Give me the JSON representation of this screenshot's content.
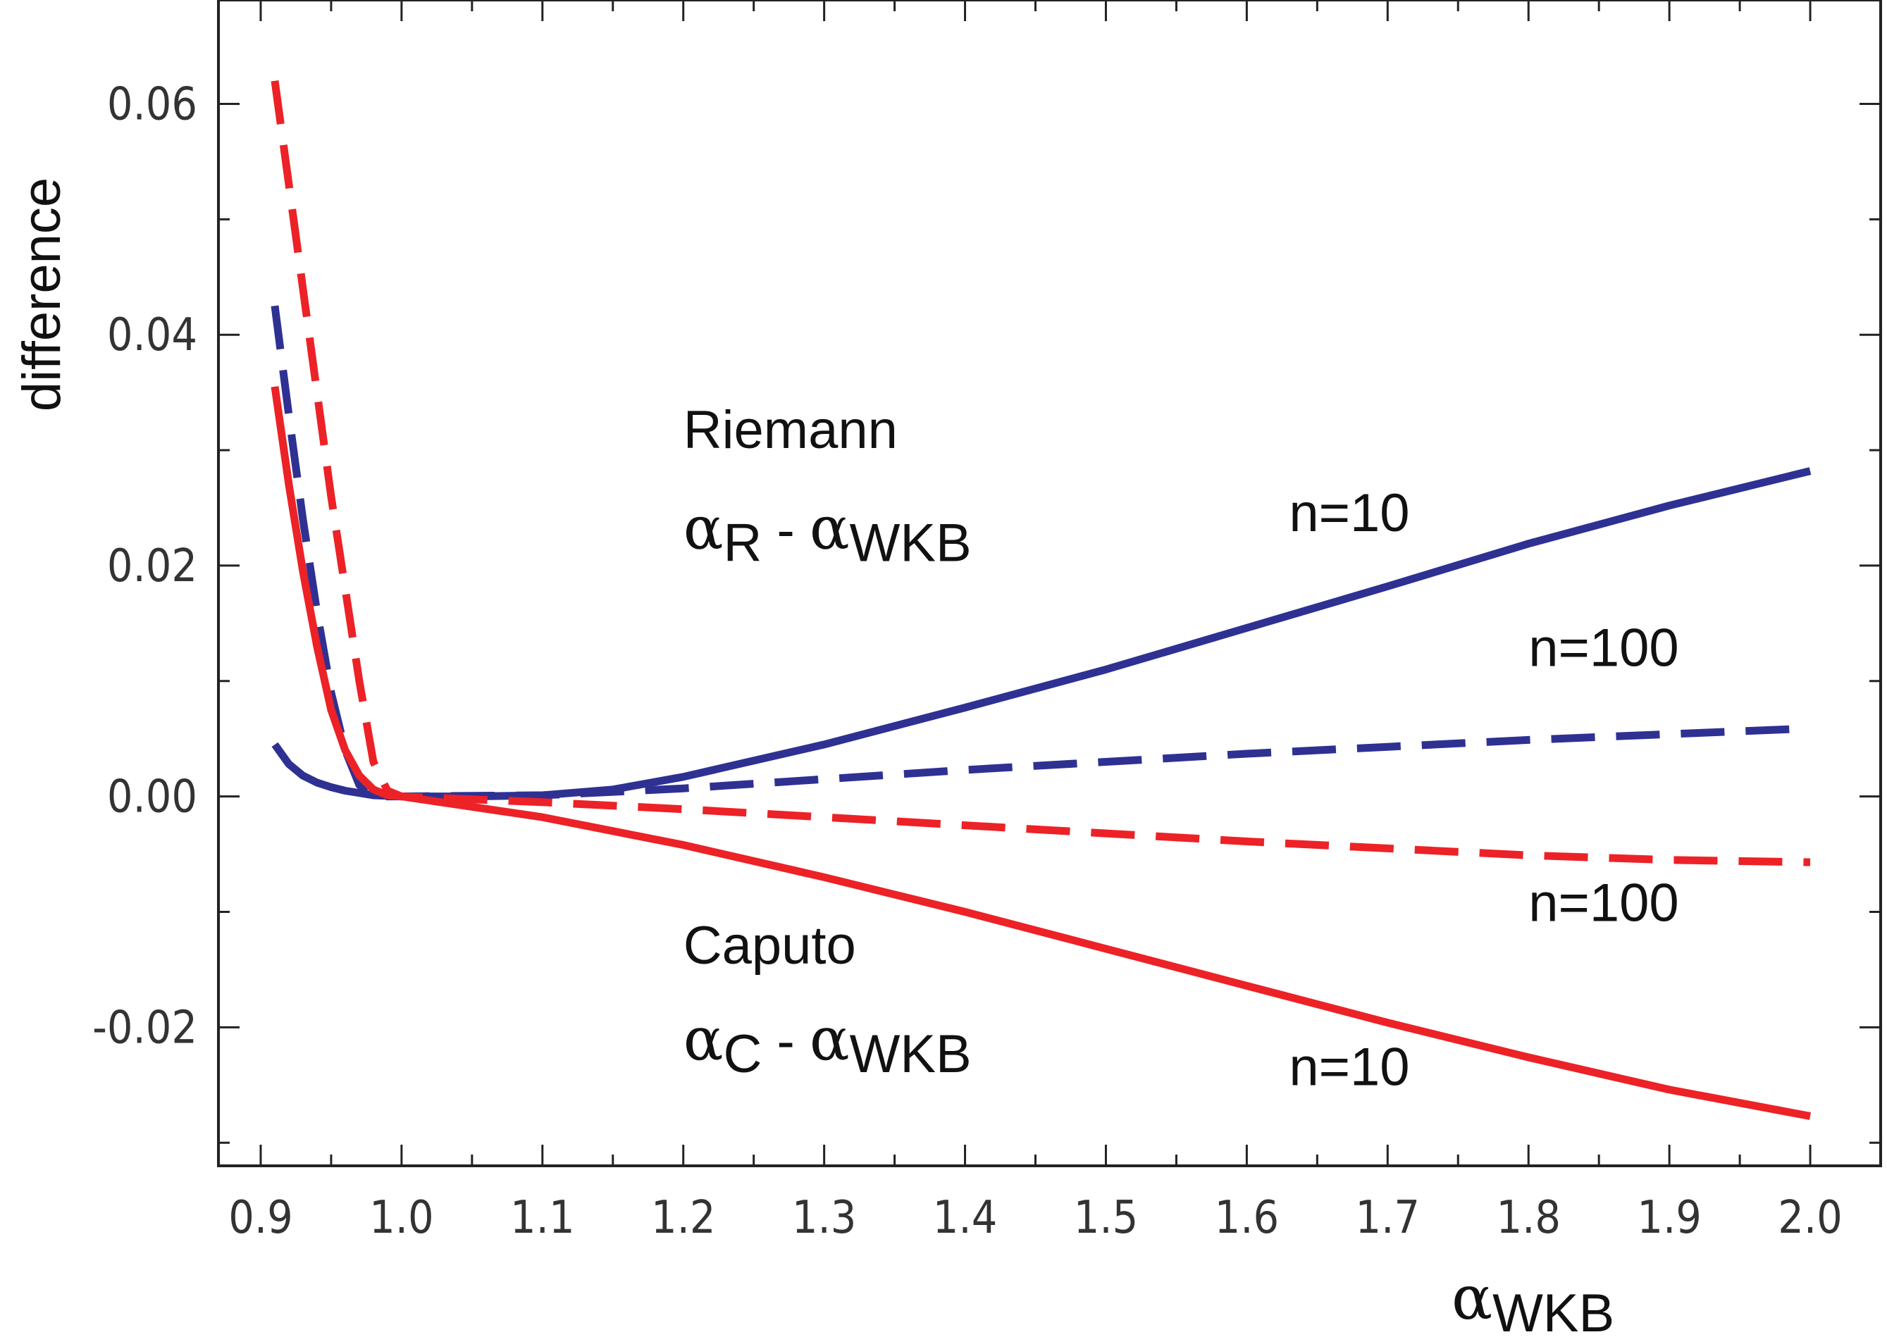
{
  "chart_data": {
    "type": "line",
    "xlabel": "α",
    "xlabel_sub": "WKB",
    "ylabel": "difference",
    "xlim": [
      0.87,
      2.05
    ],
    "ylim": [
      -0.032,
      0.069
    ],
    "x_ticks": [
      0.9,
      1.0,
      1.1,
      1.2,
      1.3,
      1.4,
      1.5,
      1.6,
      1.7,
      1.8,
      1.9,
      2.0
    ],
    "x_tick_labels": [
      "0.9",
      "1.0",
      "1.1",
      "1.2",
      "1.3",
      "1.4",
      "1.5",
      "1.6",
      "1.7",
      "1.8",
      "1.9",
      "2.0"
    ],
    "y_ticks": [
      -0.02,
      0.0,
      0.02,
      0.04,
      0.06
    ],
    "y_tick_labels": [
      "-0.02",
      "0.00",
      "0.02",
      "0.04",
      "0.06"
    ],
    "grid": false,
    "legend": "none",
    "series": [
      {
        "style": "solid",
        "color": "#2e3192",
        "x": [
          0.91,
          0.92,
          0.93,
          0.94,
          0.95,
          0.96,
          0.97,
          0.98,
          0.99,
          1.0,
          1.05,
          1.1,
          1.15,
          1.2,
          1.3,
          1.4,
          1.5,
          1.6,
          1.7,
          1.8,
          1.9,
          2.0
        ],
        "y": [
          0.0045,
          0.0028,
          0.0018,
          0.0012,
          0.0008,
          0.0005,
          0.0003,
          0.0001,
          5e-05,
          0.0,
          0.0,
          0.0001,
          0.0006,
          0.0017,
          0.0045,
          0.0077,
          0.011,
          0.0146,
          0.0182,
          0.0219,
          0.0252,
          0.0282
        ]
      },
      {
        "style": "dashed",
        "color": "#2e3192",
        "x": [
          0.91,
          0.92,
          0.93,
          0.94,
          0.95,
          0.96,
          0.97,
          0.98,
          1.0,
          1.1,
          1.2,
          1.3,
          1.4,
          1.5,
          1.6,
          1.7,
          1.8,
          1.9,
          2.0
        ],
        "y": [
          0.0425,
          0.033,
          0.024,
          0.016,
          0.009,
          0.004,
          0.001,
          0.0,
          0.0,
          0.0001,
          0.0007,
          0.0015,
          0.0023,
          0.003,
          0.0037,
          0.0043,
          0.0049,
          0.0054,
          0.0059
        ]
      },
      {
        "style": "solid",
        "color": "#ec2227",
        "x": [
          0.91,
          0.92,
          0.93,
          0.94,
          0.95,
          0.96,
          0.97,
          0.98,
          0.99,
          1.0,
          1.1,
          1.2,
          1.3,
          1.4,
          1.5,
          1.6,
          1.7,
          1.8,
          1.9,
          2.0
        ],
        "y": [
          0.0355,
          0.027,
          0.0195,
          0.013,
          0.0075,
          0.004,
          0.0018,
          0.0006,
          0.0001,
          0.0,
          -0.0018,
          -0.0042,
          -0.007,
          -0.01,
          -0.0132,
          -0.0164,
          -0.0196,
          -0.0226,
          -0.0254,
          -0.0277
        ]
      },
      {
        "style": "dashed",
        "color": "#ec2227",
        "x": [
          0.91,
          0.92,
          0.93,
          0.94,
          0.95,
          0.96,
          0.97,
          0.98,
          0.99,
          1.0,
          1.1,
          1.2,
          1.3,
          1.4,
          1.5,
          1.6,
          1.7,
          1.8,
          1.9,
          2.0
        ],
        "y": [
          0.062,
          0.053,
          0.044,
          0.035,
          0.026,
          0.018,
          0.01,
          0.003,
          0.0005,
          0.0,
          -0.0005,
          -0.0011,
          -0.0018,
          -0.0025,
          -0.0032,
          -0.0039,
          -0.0045,
          -0.0051,
          -0.0055,
          -0.0057
        ]
      }
    ],
    "annotations": [
      {
        "text": "Riemann",
        "x": 1.2,
        "y": 0.0302
      },
      {
        "text": "α",
        "sub": "R",
        "mid": " - ",
        "text2": "α",
        "sub2": "WKB",
        "x": 1.2,
        "y": 0.0215
      },
      {
        "text": "n=10",
        "x": 1.63,
        "y": 0.023
      },
      {
        "text": "n=100",
        "x": 1.8,
        "y": 0.0113
      },
      {
        "text": "n=100",
        "x": 1.8,
        "y": -0.0108
      },
      {
        "text": "Caputo",
        "x": 1.2,
        "y": -0.0145
      },
      {
        "text": "α",
        "sub": "C",
        "mid": " - ",
        "text2": "α",
        "sub2": "WKB",
        "x": 1.2,
        "y": -0.0228
      },
      {
        "text": "n=10",
        "x": 1.63,
        "y": -0.025
      }
    ]
  }
}
